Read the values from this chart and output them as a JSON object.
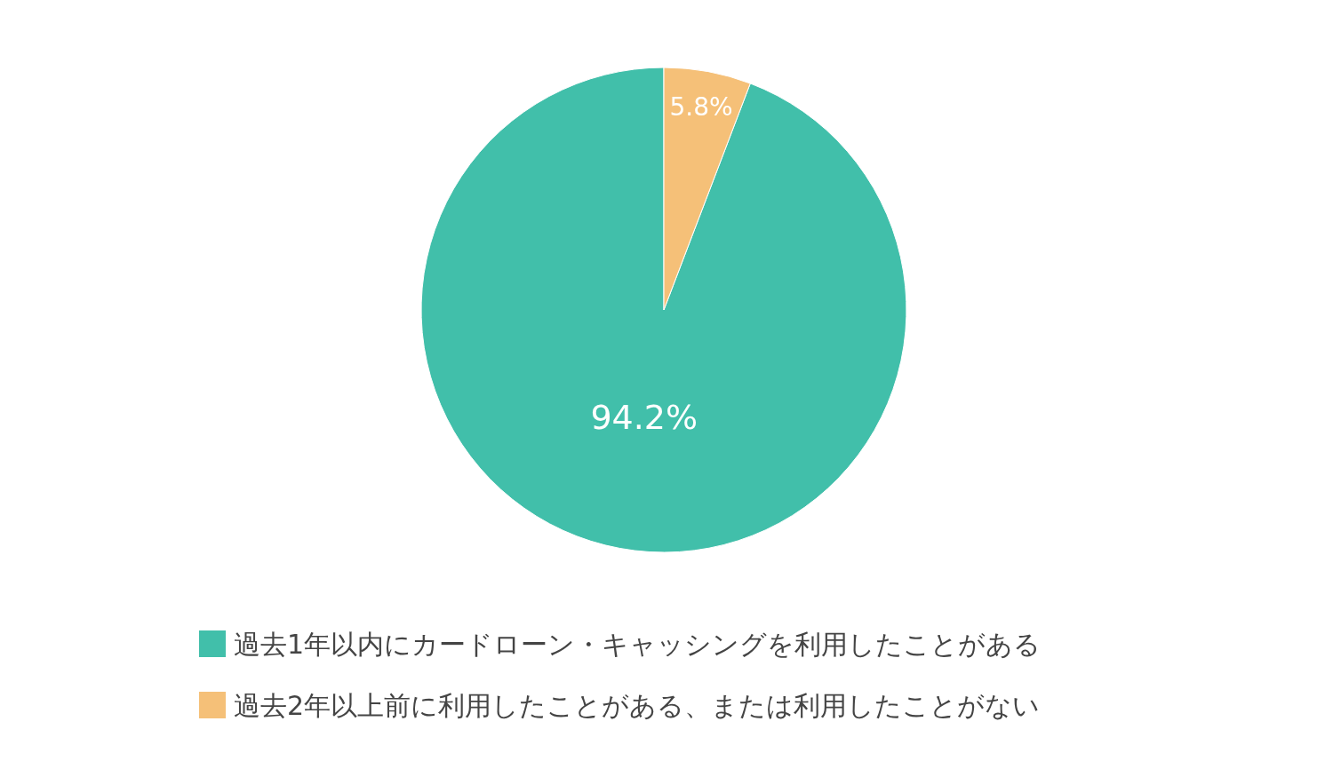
{
  "chart_data": {
    "type": "pie",
    "categories": [
      "過去1年以内にカードローン・キャッシングを利用したことがある",
      "過去2年以上前に利用したことがある、または利用したことがない"
    ],
    "values": [
      94.2,
      5.8
    ],
    "colors": [
      "#41bfaa",
      "#f5c078"
    ],
    "value_labels": [
      "94.2%",
      "5.8%"
    ],
    "legend": "bottom"
  }
}
